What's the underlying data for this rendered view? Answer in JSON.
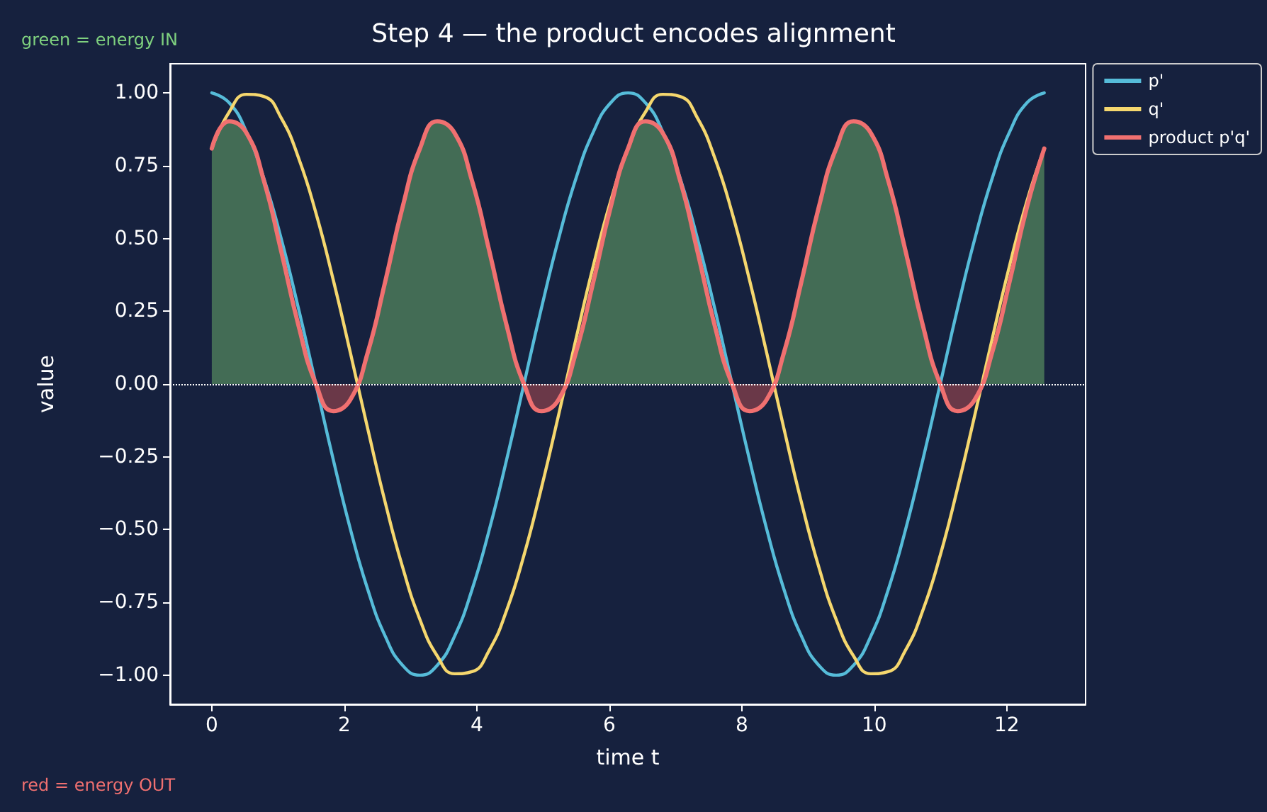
{
  "chart_data": {
    "type": "line",
    "title": "Step 4 — the product encodes alignment",
    "xlabel": "time t",
    "ylabel": "value",
    "annotations": [
      "green = energy IN",
      "red = energy OUT"
    ],
    "x": [
      0,
      0.262,
      0.524,
      0.785,
      1.047,
      1.309,
      1.571,
      1.833,
      2.094,
      2.356,
      2.618,
      2.88,
      3.142,
      3.403,
      3.665,
      3.927,
      4.189,
      4.451,
      4.712,
      4.974,
      5.236,
      5.498,
      5.76,
      6.021,
      6.283,
      6.545,
      6.807,
      7.069,
      7.33,
      7.592,
      7.854,
      8.116,
      8.378,
      8.639,
      8.901,
      9.163,
      9.425,
      9.687,
      9.948,
      10.21,
      10.472,
      10.734,
      10.996,
      11.257,
      11.519,
      11.781,
      12.043,
      12.305,
      12.566
    ],
    "series": [
      {
        "name": "p'",
        "color": "#56bcd9",
        "values": [
          1,
          0.966,
          0.866,
          0.707,
          0.5,
          0.259,
          0,
          -0.259,
          -0.5,
          -0.707,
          -0.866,
          -0.966,
          -1,
          -0.966,
          -0.866,
          -0.707,
          -0.5,
          -0.259,
          0,
          0.259,
          0.5,
          0.707,
          0.866,
          0.966,
          1,
          0.966,
          0.866,
          0.707,
          0.5,
          0.259,
          0,
          -0.259,
          -0.5,
          -0.707,
          -0.866,
          -0.966,
          -1,
          -0.966,
          -0.866,
          -0.707,
          -0.5,
          -0.259,
          0,
          0.259,
          0.5,
          0.707,
          0.866,
          0.966,
          1
        ]
      },
      {
        "name": "q'",
        "color": "#f5d76e",
        "values": [
          0.809,
          0.934,
          0.995,
          0.988,
          0.914,
          0.777,
          0.588,
          0.358,
          0.105,
          -0.156,
          -0.407,
          -0.629,
          -0.809,
          -0.934,
          -0.995,
          -0.988,
          -0.914,
          -0.777,
          -0.588,
          -0.358,
          -0.105,
          0.156,
          0.407,
          0.629,
          0.809,
          0.934,
          0.995,
          0.988,
          0.914,
          0.777,
          0.588,
          0.358,
          0.105,
          -0.156,
          -0.407,
          -0.629,
          -0.809,
          -0.934,
          -0.995,
          -0.988,
          -0.914,
          -0.777,
          -0.588,
          -0.358,
          -0.105,
          0.156,
          0.407,
          0.629,
          0.809
        ]
      },
      {
        "name": "product p'q'",
        "type": "area",
        "color": "#f07070",
        "values": [
          0.809,
          0.902,
          0.862,
          0.699,
          0.457,
          0.201,
          0,
          -0.093,
          -0.053,
          0.11,
          0.352,
          0.608,
          0.809,
          0.902,
          0.862,
          0.699,
          0.457,
          0.201,
          0,
          -0.093,
          -0.053,
          0.11,
          0.352,
          0.608,
          0.809,
          0.902,
          0.862,
          0.699,
          0.457,
          0.201,
          0,
          -0.093,
          -0.053,
          0.11,
          0.352,
          0.608,
          0.809,
          0.902,
          0.862,
          0.699,
          0.457,
          0.201,
          0,
          -0.093,
          -0.053,
          0.11,
          0.352,
          0.608,
          0.809
        ]
      }
    ],
    "xlim": [
      -0.63,
      13.19
    ],
    "xticks": [
      0,
      2,
      4,
      6,
      8,
      10,
      12
    ],
    "ylim": [
      -1.1,
      1.1
    ],
    "yticks": [
      {
        "value": -1,
        "label": "−1.00"
      },
      {
        "value": -0.75,
        "label": "−0.75"
      },
      {
        "value": -0.5,
        "label": "−0.50"
      },
      {
        "value": -0.25,
        "label": "−0.25"
      },
      {
        "value": 0,
        "label": "0.00"
      },
      {
        "value": 0.25,
        "label": "0.25"
      },
      {
        "value": 0.5,
        "label": "0.50"
      },
      {
        "value": 0.75,
        "label": "0.75"
      },
      {
        "value": 1,
        "label": "1.00"
      }
    ],
    "ref_lines": [
      {
        "axis": "y",
        "value": 0,
        "color": "#ffffff",
        "line_style": "dotted"
      }
    ],
    "legend": "top right",
    "grid": false
  }
}
